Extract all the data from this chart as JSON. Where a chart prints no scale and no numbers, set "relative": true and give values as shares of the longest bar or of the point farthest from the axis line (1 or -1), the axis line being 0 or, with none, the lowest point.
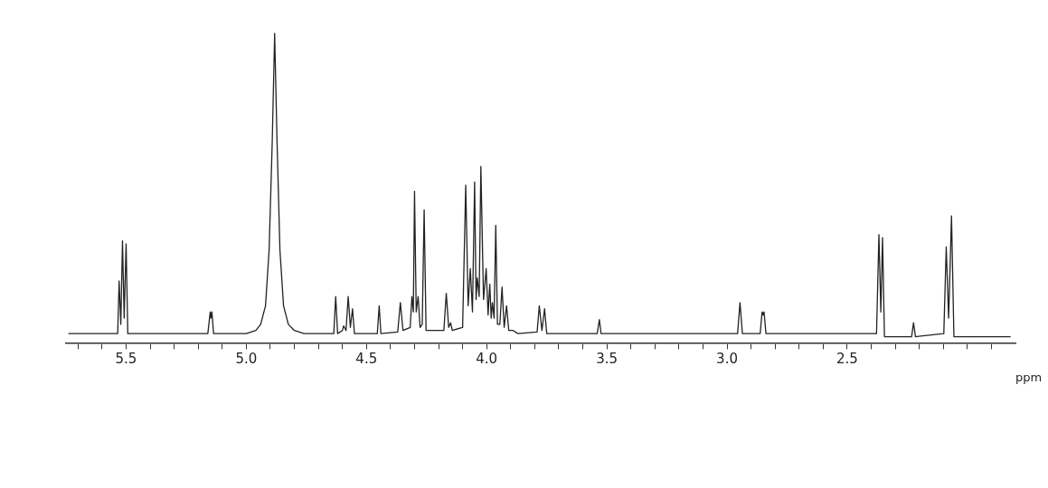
{
  "chart_data": {
    "type": "line",
    "relative": true,
    "xlabel": "ppm",
    "color": "#222222",
    "marker": "none",
    "line_style": "solid",
    "grid": false,
    "legend": false,
    "tick_labels": "x",
    "xlim": [
      5.75,
      1.8
    ],
    "xticks": [
      {
        "value": 5.7,
        "label": null
      },
      {
        "value": 5.6,
        "label": null
      },
      {
        "value": 5.5,
        "label": "5.5"
      },
      {
        "value": 5.4,
        "label": null
      },
      {
        "value": 5.3,
        "label": null
      },
      {
        "value": 5.2,
        "label": null
      },
      {
        "value": 5.1,
        "label": null
      },
      {
        "value": 5.0,
        "label": "5.0"
      },
      {
        "value": 4.9,
        "label": null
      },
      {
        "value": 4.8,
        "label": null
      },
      {
        "value": 4.7,
        "label": null
      },
      {
        "value": 4.6,
        "label": null
      },
      {
        "value": 4.5,
        "label": "4.5"
      },
      {
        "value": 4.4,
        "label": null
      },
      {
        "value": 4.3,
        "label": null
      },
      {
        "value": 4.2,
        "label": null
      },
      {
        "value": 4.1,
        "label": null
      },
      {
        "value": 4.0,
        "label": "4.0"
      },
      {
        "value": 3.9,
        "label": null
      },
      {
        "value": 3.8,
        "label": null
      },
      {
        "value": 3.7,
        "label": null
      },
      {
        "value": 3.6,
        "label": null
      },
      {
        "value": 3.5,
        "label": "3.5"
      },
      {
        "value": 3.4,
        "label": null
      },
      {
        "value": 3.3,
        "label": null
      },
      {
        "value": 3.2,
        "label": null
      },
      {
        "value": 3.1,
        "label": null
      },
      {
        "value": 3.0,
        "label": "3.0"
      },
      {
        "value": 2.9,
        "label": null
      },
      {
        "value": 2.8,
        "label": null
      },
      {
        "value": 2.7,
        "label": null
      },
      {
        "value": 2.6,
        "label": null
      },
      {
        "value": 2.5,
        "label": "2.5"
      },
      {
        "value": 2.4,
        "label": null
      },
      {
        "value": 2.3,
        "label": null
      },
      {
        "value": 2.2,
        "label": null
      },
      {
        "value": 2.1,
        "label": null
      },
      {
        "value": 2.0,
        "label": null
      },
      {
        "value": 1.9,
        "label": null
      }
    ],
    "x": [
      5.74,
      5.535,
      5.529,
      5.522,
      5.515,
      5.508,
      5.5,
      5.493,
      5.16,
      5.15,
      5.147,
      5.143,
      5.136,
      5.0,
      4.96,
      4.94,
      4.92,
      4.905,
      4.892,
      4.882,
      4.872,
      4.86,
      4.845,
      4.825,
      4.8,
      4.76,
      4.636,
      4.628,
      4.62,
      4.6,
      4.595,
      4.585,
      4.576,
      4.567,
      4.558,
      4.55,
      4.455,
      4.447,
      4.44,
      4.37,
      4.359,
      4.348,
      4.318,
      4.311,
      4.305,
      4.3,
      4.293,
      4.285,
      4.277,
      4.268,
      4.26,
      4.252,
      4.178,
      4.168,
      4.158,
      4.15,
      4.143,
      4.1,
      4.087,
      4.077,
      4.068,
      4.059,
      4.05,
      4.044,
      4.039,
      4.031,
      4.024,
      4.013,
      4.002,
      3.994,
      3.987,
      3.981,
      3.976,
      3.969,
      3.962,
      3.955,
      3.945,
      3.936,
      3.927,
      3.917,
      3.908,
      3.89,
      3.87,
      3.79,
      3.781,
      3.77,
      3.759,
      3.75,
      3.54,
      3.531,
      3.524,
      2.956,
      2.946,
      2.936,
      2.862,
      2.854,
      2.85,
      2.846,
      2.838,
      2.378,
      2.368,
      2.36,
      2.353,
      2.345,
      2.232,
      2.224,
      2.216,
      2.098,
      2.088,
      2.078,
      2.066,
      2.056,
      1.82
    ],
    "values": [
      0.03,
      0.03,
      0.2,
      0.06,
      0.33,
      0.08,
      0.32,
      0.03,
      0.03,
      0.1,
      0.08,
      0.1,
      0.03,
      0.03,
      0.04,
      0.06,
      0.12,
      0.3,
      0.65,
      1,
      0.65,
      0.3,
      0.12,
      0.06,
      0.04,
      0.03,
      0.03,
      0.15,
      0.03,
      0.04,
      0.055,
      0.04,
      0.15,
      0.05,
      0.11,
      0.03,
      0.03,
      0.12,
      0.03,
      0.035,
      0.13,
      0.04,
      0.05,
      0.15,
      0.1,
      0.49,
      0.1,
      0.15,
      0.05,
      0.06,
      0.43,
      0.04,
      0.04,
      0.16,
      0.05,
      0.065,
      0.04,
      0.05,
      0.51,
      0.12,
      0.24,
      0.1,
      0.52,
      0.14,
      0.21,
      0.15,
      0.57,
      0.14,
      0.24,
      0.09,
      0.19,
      0.08,
      0.13,
      0.08,
      0.38,
      0.06,
      0.06,
      0.18,
      0.05,
      0.12,
      0.04,
      0.04,
      0.03,
      0.035,
      0.12,
      0.04,
      0.11,
      0.03,
      0.03,
      0.075,
      0.03,
      0.03,
      0.13,
      0.03,
      0.03,
      0.1,
      0.09,
      0.1,
      0.03,
      0.03,
      0.35,
      0.1,
      0.34,
      0.02,
      0.02,
      0.065,
      0.02,
      0.03,
      0.31,
      0.08,
      0.41,
      0.02,
      0.02
    ]
  }
}
